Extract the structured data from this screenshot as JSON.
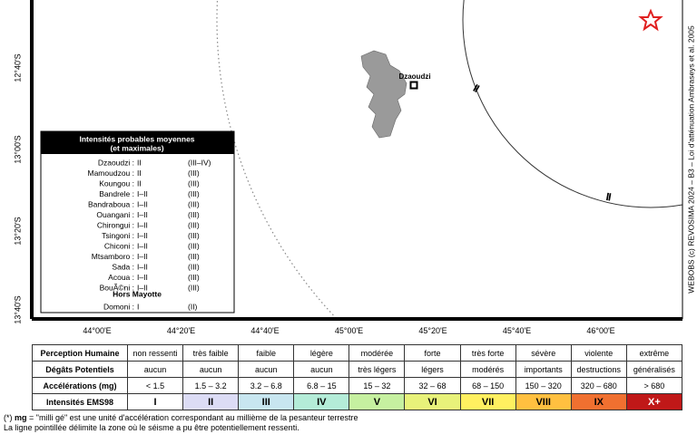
{
  "map": {
    "lat_labels": [
      "12°40'S",
      "13°00'S",
      "13°20'S",
      "13°40'S"
    ],
    "lon_labels": [
      "44°00'E",
      "44°20'E",
      "44°40'E",
      "45°00'E",
      "45°20'E",
      "45°40'E",
      "46°00'E"
    ],
    "credit": "WEBOBS (c) REVOSIMA 2024 – B3 – Loi d'atténuation Ambraseys et al. 2005",
    "station": "Dzaoudzi",
    "contour_labels": [
      "II",
      "II"
    ]
  },
  "legend": {
    "title": [
      "Intensités probables moyennes",
      "(et maximales)"
    ],
    "rows": [
      [
        "Dzaoudzi :",
        "II",
        "(III–IV)"
      ],
      [
        "Mamoudzou :",
        "II",
        "(III)"
      ],
      [
        "Koungou :",
        "II",
        "(III)"
      ],
      [
        "Bandrele :",
        "I–II",
        "(III)"
      ],
      [
        "Bandraboua :",
        "I–II",
        "(III)"
      ],
      [
        "Ouangani :",
        "I–II",
        "(III)"
      ],
      [
        "Chirongui :",
        "I–II",
        "(III)"
      ],
      [
        "Tsingoni :",
        "I–II",
        "(III)"
      ],
      [
        "Chiconi :",
        "I–II",
        "(III)"
      ],
      [
        "Mtsamboro :",
        "I–II",
        "(III)"
      ],
      [
        "Sada :",
        "I–II",
        "(III)"
      ],
      [
        "Acoua :",
        "I–II",
        "(III)"
      ],
      [
        "BouÃ©ni :",
        "I–II",
        "(III)"
      ]
    ],
    "section": "Hors Mayotte",
    "extra_rows": [
      [
        "Domoni :",
        "I",
        "(II)"
      ]
    ]
  },
  "table": {
    "rows": [
      [
        "Perception Humaine",
        "non ressenti",
        "très faible",
        "faible",
        "légère",
        "modérée",
        "forte",
        "très forte",
        "sévère",
        "violente",
        "extrême"
      ],
      [
        "Dégâts Potentiels",
        "aucun",
        "aucun",
        "aucun",
        "aucun",
        "très légers",
        "légers",
        "modérés",
        "importants",
        "destructions",
        "généralisés"
      ],
      [
        "Accélérations (mg)",
        "< 1.5",
        "1.5 – 3.2",
        "3.2 – 6.8",
        "6.8 – 15",
        "15 – 32",
        "32 – 68",
        "68 – 150",
        "150 – 320",
        "320 – 680",
        "> 680"
      ],
      [
        "Intensités EMS98",
        "I",
        "II",
        "III",
        "IV",
        "V",
        "VI",
        "VII",
        "VIII",
        "IX",
        "X+"
      ]
    ],
    "intensity_colors": [
      "#ffffff",
      "#dcdcf5",
      "#c8e6f0",
      "#b4ecd8",
      "#c6f0a0",
      "#e8f27a",
      "#fff060",
      "#ffc040",
      "#f07030",
      "#c01818"
    ]
  },
  "footnote": {
    "line1": [
      "(*) ",
      "mg",
      " = \"milli gé\" est une unité d'accélération correspondant au millième de la pesanteur terrestre"
    ],
    "line2": "La ligne pointillée délimite la zone où le séisme a pu être potentiellement ressenti."
  }
}
